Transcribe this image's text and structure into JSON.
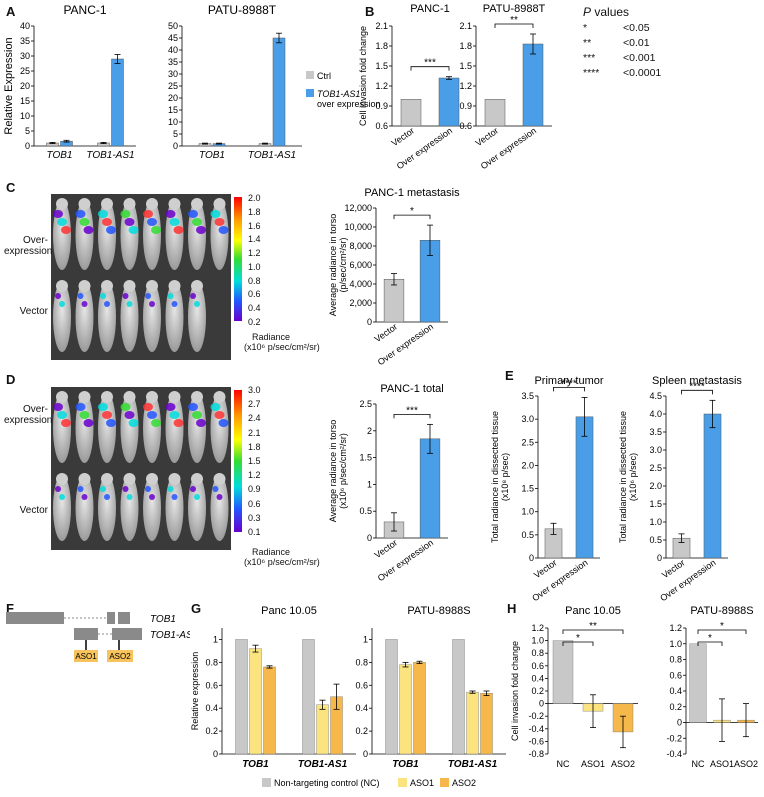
{
  "panel_labels": {
    "A": "A",
    "B": "B",
    "C": "C",
    "D": "D",
    "E": "E",
    "F": "F",
    "G": "G",
    "H": "H"
  },
  "colors": {
    "ctrl": "#c8c8c8",
    "over": "#4a9ee8",
    "aso1": "#fbe37f",
    "aso2": "#f6b84a",
    "nc": "#c8c8c8",
    "frame": "#444444"
  },
  "pvalues": {
    "title_italic": "P",
    "title_rest": " values",
    "rows": [
      {
        "stars": "*",
        "value": "<0.05"
      },
      {
        "stars": "**",
        "value": "<0.01"
      },
      {
        "stars": "***",
        "value": "<0.001"
      },
      {
        "stars": "****",
        "value": "<0.0001"
      }
    ]
  },
  "imaging": {
    "c_row1": "Over-\nexpression",
    "c_row1_a": "Over-",
    "c_row1_b": "expression",
    "c_row2": "Vector",
    "c_scale_ticks": [
      "2.0",
      "1.8",
      "1.6",
      "1.4",
      "1.2",
      "1.0",
      "0.8",
      "0.6",
      "0.4",
      "0.2"
    ],
    "c_scale_label_a": "Radiance",
    "c_scale_label_b": "(x10⁶ p/sec/cm²/sr)",
    "d_row1_a": "Over-",
    "d_row1_b": "expression",
    "d_row2": "Vector",
    "d_scale_ticks": [
      "3.0",
      "2.7",
      "2.4",
      "2.1",
      "1.8",
      "1.5",
      "1.2",
      "0.9",
      "0.6",
      "0.3",
      "0.1"
    ],
    "d_scale_label_a": "Radiance",
    "d_scale_label_b": "(x10⁶ p/sec/cm²/sr)"
  },
  "schematic": {
    "gene1": "TOB1",
    "gene2": "TOB1-AS1",
    "aso1": "ASO1",
    "aso2": "ASO2"
  },
  "chart_data": [
    {
      "id": "A1",
      "type": "bar",
      "title": "PANC-1",
      "ylabel": "Relative Expression",
      "categories": [
        "TOB1",
        "TOB1-AS1"
      ],
      "series": [
        {
          "name": "Ctrl",
          "values": [
            1.0,
            1.0
          ],
          "err": [
            0.2,
            0.2
          ]
        },
        {
          "name": "TOB1-AS1 over expression",
          "values": [
            1.6,
            29.0
          ],
          "err": [
            0.3,
            1.5
          ]
        }
      ],
      "ylim": [
        0,
        40
      ],
      "yticks": [
        "0",
        "5",
        "10",
        "15",
        "20",
        "25",
        "30",
        "35",
        "40"
      ]
    },
    {
      "id": "A2",
      "type": "bar",
      "title": "PATU-8988T",
      "categories": [
        "TOB1",
        "TOB1-AS1"
      ],
      "series": [
        {
          "name": "Ctrl",
          "values": [
            1.0,
            1.0
          ],
          "err": [
            0.2,
            0.2
          ]
        },
        {
          "name": "TOB1-AS1 over expression",
          "values": [
            1.0,
            45.0
          ],
          "err": [
            0.2,
            2.0
          ]
        }
      ],
      "ylim": [
        0,
        50
      ],
      "yticks": [
        "0",
        "5",
        "10",
        "15",
        "20",
        "25",
        "30",
        "35",
        "40",
        "45",
        "50"
      ],
      "legend": [
        "Ctrl",
        "TOB1-AS1",
        "over expression"
      ]
    },
    {
      "id": "B1",
      "type": "bar",
      "title": "PANC-1",
      "ylabel": "Cell invasion fold change",
      "categories": [
        "Vector",
        "Over expression"
      ],
      "values": [
        1.0,
        1.32
      ],
      "err": [
        0,
        0.02
      ],
      "sig": "***",
      "ylim": [
        0.6,
        2.1
      ],
      "yticks": [
        "0.6",
        "0.9",
        "1.2",
        "1.5",
        "1.8",
        "2.1"
      ]
    },
    {
      "id": "B2",
      "type": "bar",
      "title": "PATU-8988T",
      "categories": [
        "Vector",
        "Over expression"
      ],
      "values": [
        1.0,
        1.83
      ],
      "err": [
        0,
        0.15
      ],
      "sig": "**",
      "ylim": [
        0.6,
        2.1
      ],
      "yticks": [
        "0.6",
        "0.9",
        "1.2",
        "1.5",
        "1.8",
        "2.1"
      ]
    },
    {
      "id": "C",
      "type": "bar",
      "title": "PANC-1 metastasis",
      "ylabel_a": "Average radiance in torso",
      "ylabel_b": "(p/sec/cm²/sr)",
      "categories": [
        "Vector",
        "Over expression"
      ],
      "values": [
        4500,
        8600
      ],
      "err": [
        600,
        1600
      ],
      "sig": "*",
      "ylim": [
        0,
        12000
      ],
      "yticks": [
        "0",
        "2,000",
        "4,000",
        "6,000",
        "8,000",
        "10,000",
        "12,000"
      ]
    },
    {
      "id": "D",
      "type": "bar",
      "title": "PANC-1 total",
      "ylabel_a": "Average radiance in torso",
      "ylabel_b": "(x10⁶ p/sec/cm²/sr)",
      "categories": [
        "Vector",
        "Over expression"
      ],
      "values": [
        0.3,
        1.85
      ],
      "err": [
        0.17,
        0.27
      ],
      "sig": "***",
      "ylim": [
        0,
        2.5
      ],
      "yticks": [
        "0",
        "0.5",
        "1",
        "1.5",
        "2",
        "2.5"
      ]
    },
    {
      "id": "E1",
      "type": "bar",
      "title": "Primary tumor",
      "ylabel_a": "Total radiance in dissected tissue",
      "ylabel_b": "(x10⁸ p/sec)",
      "categories": [
        "Vector",
        "Over expression"
      ],
      "values": [
        0.63,
        3.05
      ],
      "err": [
        0.12,
        0.42
      ],
      "sig": "****",
      "ylim": [
        0,
        3.5
      ],
      "yticks": [
        "0",
        "0.5",
        "1.0",
        "1.5",
        "2.0",
        "2.5",
        "3.0",
        "3.5"
      ]
    },
    {
      "id": "E2",
      "type": "bar",
      "title": "Spleen metastasis",
      "ylabel_a": "Total radiance in dissected tissue",
      "ylabel_b": "(x10⁶ p/sec)",
      "categories": [
        "Vector",
        "Over expression"
      ],
      "values": [
        0.55,
        4.0
      ],
      "err": [
        0.12,
        0.38
      ],
      "sig": "****",
      "ylim": [
        0,
        4.5
      ],
      "yticks": [
        "0",
        "0.5",
        "1.0",
        "1.5",
        "2.0",
        "2.5",
        "3.0",
        "3.5",
        "4.0",
        "4.5"
      ]
    },
    {
      "id": "G1",
      "type": "bar",
      "title": "Panc 10.05",
      "ylabel": "Relative expression",
      "categories": [
        "TOB1",
        "TOB1-AS1"
      ],
      "series": [
        {
          "name": "Non-targeting control (NC)",
          "values": [
            1.0,
            1.0
          ],
          "err": [
            0,
            0
          ]
        },
        {
          "name": "ASO1",
          "values": [
            0.92,
            0.43
          ],
          "err": [
            0.03,
            0.04
          ]
        },
        {
          "name": "ASO2",
          "values": [
            0.76,
            0.5
          ],
          "err": [
            0.01,
            0.11
          ]
        }
      ],
      "ylim": [
        0,
        1.1
      ],
      "yticks": [
        "0",
        "0.2",
        "0.4",
        "0.6",
        "0.8",
        "1"
      ]
    },
    {
      "id": "G2",
      "type": "bar",
      "title": "PATU-8988S",
      "categories": [
        "TOB1",
        "TOB1-AS1"
      ],
      "series": [
        {
          "name": "Non-targeting control (NC)",
          "values": [
            1.0,
            1.0
          ],
          "err": [
            0,
            0
          ]
        },
        {
          "name": "ASO1",
          "values": [
            0.78,
            0.54
          ],
          "err": [
            0.02,
            0.01
          ]
        },
        {
          "name": "ASO2",
          "values": [
            0.8,
            0.53
          ],
          "err": [
            0.01,
            0.02
          ]
        }
      ],
      "ylim": [
        0,
        1.1
      ],
      "yticks": [
        "0",
        "0.2",
        "0.4",
        "0.6",
        "0.8",
        "1"
      ],
      "legend": [
        "Non-targeting control (NC)",
        "ASO1",
        "ASO2"
      ]
    },
    {
      "id": "H1",
      "type": "bar",
      "title": "Panc 10.05",
      "ylabel": "Cell invasion fold change",
      "categories": [
        "NC",
        "ASO1",
        "ASO2"
      ],
      "values": [
        1.0,
        -0.12,
        -0.45
      ],
      "err": [
        0,
        0.26,
        0.25
      ],
      "sig": [
        "*",
        "**"
      ],
      "ylim": [
        -0.8,
        1.2
      ],
      "yticks": [
        "-0.8",
        "-0.6",
        "-0.4",
        "-0.2",
        "0",
        "0.2",
        "0.4",
        "0.6",
        "0.8",
        "1.0",
        "1.2"
      ]
    },
    {
      "id": "H2",
      "type": "bar",
      "title": "PATU-8988S",
      "categories": [
        "NC",
        "ASO1",
        "ASO2"
      ],
      "values": [
        1.0,
        0.03,
        0.03
      ],
      "err": [
        0,
        0.27,
        0.21
      ],
      "sig": [
        "*",
        "*"
      ],
      "ylim": [
        -0.4,
        1.2
      ],
      "yticks": [
        "-0.4",
        "-0.2",
        "0",
        "0.2",
        "0.4",
        "0.6",
        "0.8",
        "1.0",
        "1.2"
      ]
    }
  ]
}
